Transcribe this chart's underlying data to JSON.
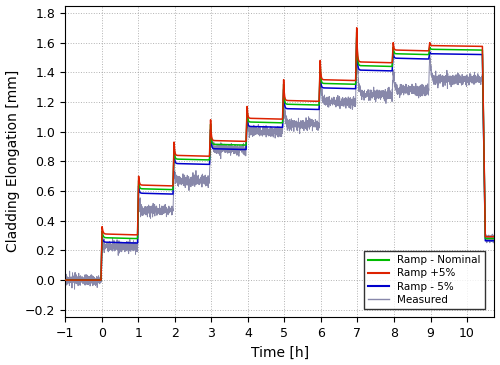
{
  "title": "",
  "xlabel": "Time [h]",
  "ylabel": "Cladding Elongation [mm]",
  "xlim": [
    -1.0,
    10.75
  ],
  "ylim": [
    -0.25,
    1.85
  ],
  "xticks": [
    -1,
    0,
    1,
    2,
    3,
    4,
    5,
    6,
    7,
    8,
    9,
    10
  ],
  "yticks": [
    -0.2,
    0.0,
    0.2,
    0.4,
    0.6,
    0.8,
    1.0,
    1.2,
    1.4,
    1.6,
    1.8
  ],
  "colors": {
    "nominal": "#00bb00",
    "plus5": "#dd2200",
    "minus5": "#0000cc",
    "measured": "#8888aa"
  },
  "legend_labels": [
    "Ramp - Nominal",
    "Ramp +5%",
    "Ramp - 5%",
    "Measured"
  ],
  "steps": [
    {
      "t_rise": -0.02,
      "t_peak": 0.01,
      "t_settle": 0.15,
      "t_flat": 0.88,
      "base_nom": 0.28,
      "spike_nom": 0.33,
      "settle_nom": 0.285
    },
    {
      "t_rise": 0.98,
      "t_peak": 1.01,
      "t_settle": 1.12,
      "t_flat": 1.88,
      "base_nom": 0.61,
      "spike_nom": 0.67,
      "settle_nom": 0.615
    },
    {
      "t_rise": 1.95,
      "t_peak": 1.98,
      "t_settle": 2.08,
      "t_flat": 2.88,
      "base_nom": 0.81,
      "spike_nom": 0.9,
      "settle_nom": 0.815
    },
    {
      "t_rise": 2.95,
      "t_peak": 2.98,
      "t_settle": 3.08,
      "t_flat": 3.88,
      "base_nom": 0.91,
      "spike_nom": 1.05,
      "settle_nom": 0.915
    },
    {
      "t_rise": 3.95,
      "t_peak": 3.98,
      "t_settle": 4.08,
      "t_flat": 4.88,
      "base_nom": 1.06,
      "spike_nom": 1.14,
      "settle_nom": 1.065
    },
    {
      "t_rise": 4.95,
      "t_peak": 4.98,
      "t_settle": 5.08,
      "t_flat": 5.88,
      "base_nom": 1.18,
      "spike_nom": 1.32,
      "settle_nom": 1.185
    },
    {
      "t_rise": 5.95,
      "t_peak": 5.98,
      "t_settle": 6.08,
      "t_flat": 6.88,
      "base_nom": 1.32,
      "spike_nom": 1.45,
      "settle_nom": 1.325
    },
    {
      "t_rise": 6.95,
      "t_peak": 6.98,
      "t_settle": 7.08,
      "t_flat": 7.88,
      "base_nom": 1.44,
      "spike_nom": 1.67,
      "settle_nom": 1.445
    },
    {
      "t_rise": 7.95,
      "t_peak": 7.98,
      "t_settle": 8.08,
      "t_flat": 8.88,
      "base_nom": 1.52,
      "spike_nom": 1.57,
      "settle_nom": 1.525
    },
    {
      "t_rise": 8.95,
      "t_peak": 8.98,
      "t_settle": 9.08,
      "t_flat": 10.38,
      "base_nom": 1.55,
      "spike_nom": 1.57,
      "settle_nom": 1.555
    }
  ],
  "drop_t": 10.42,
  "drop_end_t": 10.5,
  "drop_val": 0.28,
  "final_t": 10.75,
  "final_val": 0.28,
  "spread_plus": 0.025,
  "spread_minus": -0.03
}
